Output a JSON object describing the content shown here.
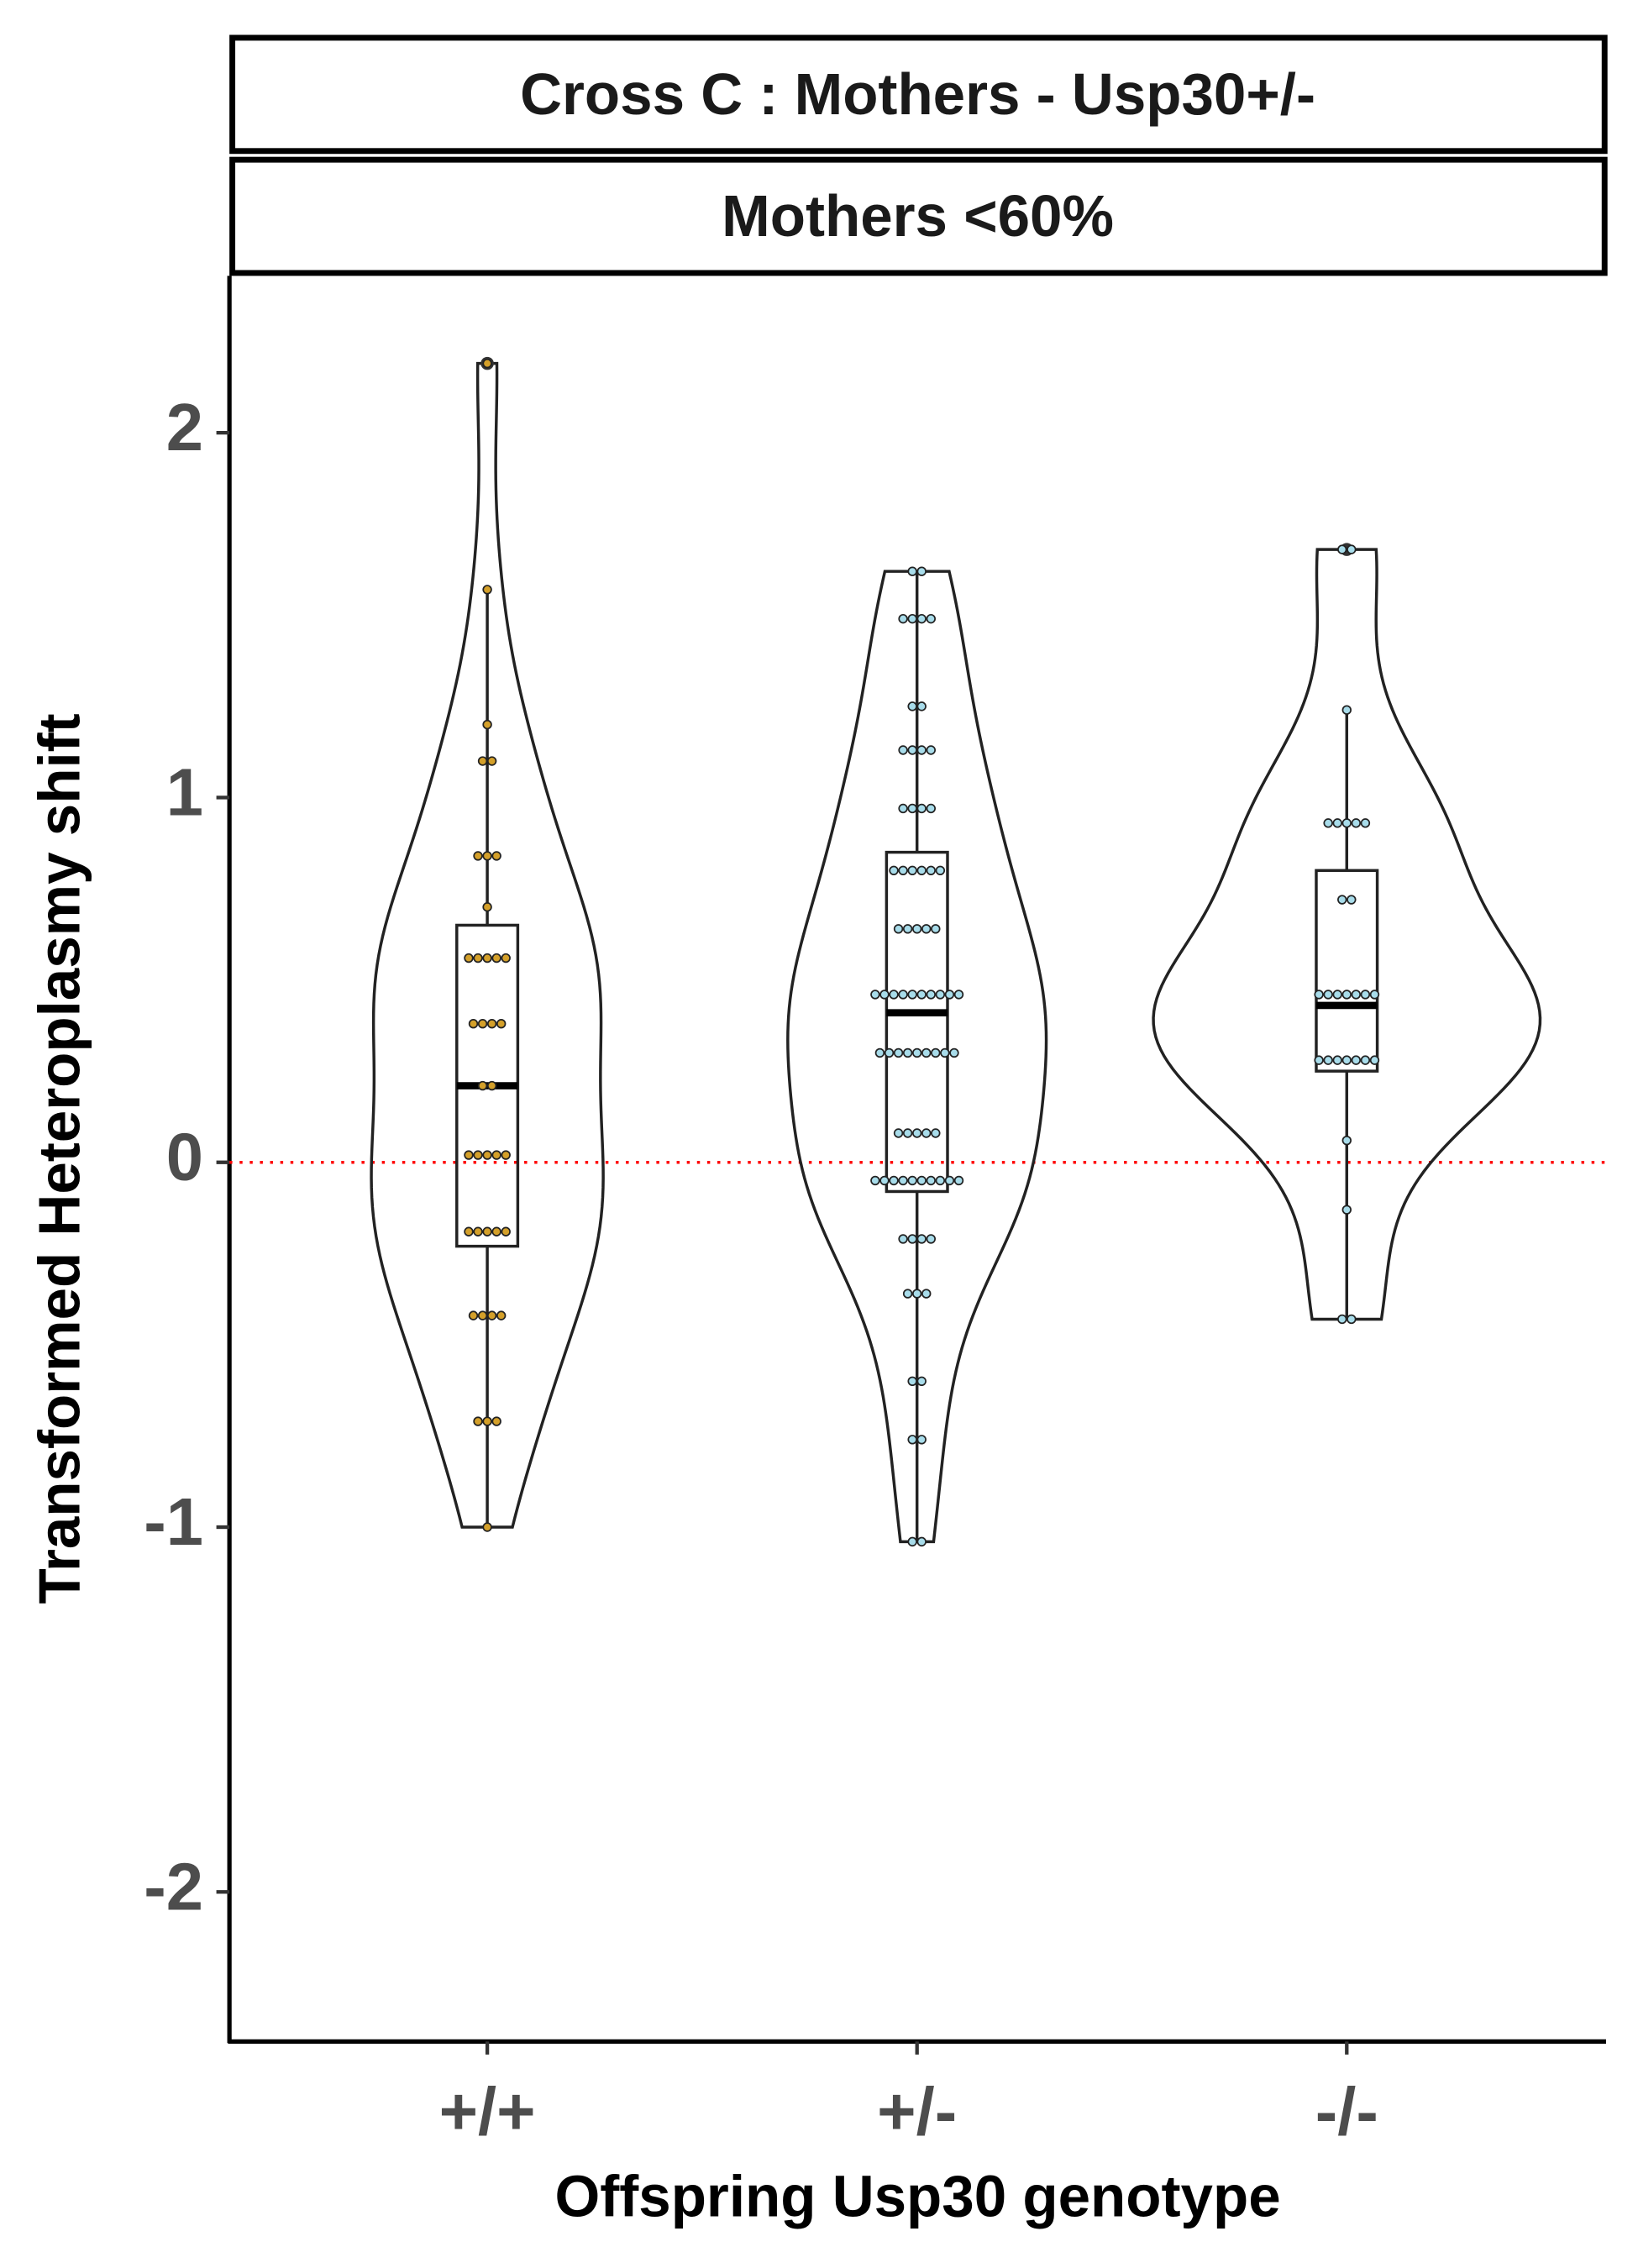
{
  "chart_data": {
    "type": "violin",
    "strip_titles": [
      "Cross C : Mothers - Usp30+/-",
      "Mothers <60%"
    ],
    "x_label": "Offspring Usp30 genotype",
    "y_label": "Transformed Heteroplasmy shift",
    "categories": [
      "+/+",
      "+/-",
      "-/-"
    ],
    "ylim": [
      -2.41,
      2.43
    ],
    "yticks": [
      -2,
      -1,
      0,
      1,
      2
    ],
    "reference_line": {
      "value": 0,
      "color": "#ff0000"
    },
    "groups": [
      {
        "color": "#d4a02a",
        "values": [
          2.19,
          1.57,
          1.2,
          1.1,
          1.1,
          0.84,
          0.84,
          0.84,
          0.7,
          0.56,
          0.56,
          0.56,
          0.56,
          0.56,
          0.38,
          0.38,
          0.38,
          0.38,
          0.21,
          0.21,
          0.02,
          0.02,
          0.02,
          0.02,
          0.02,
          -0.19,
          -0.19,
          -0.19,
          -0.19,
          -0.19,
          -0.42,
          -0.42,
          -0.42,
          -0.42,
          -0.71,
          -0.71,
          -0.71,
          -1.0
        ],
        "box": {
          "whisker_low": -1.0,
          "q1": -0.23,
          "median": 0.21,
          "q3": 0.65,
          "whisker_high": 1.57
        },
        "outliers": [
          2.19
        ]
      },
      {
        "color": "#a8dcea",
        "values": [
          1.62,
          1.62,
          1.49,
          1.49,
          1.49,
          1.49,
          1.25,
          1.25,
          1.13,
          1.13,
          1.13,
          1.13,
          0.97,
          0.97,
          0.97,
          0.97,
          0.8,
          0.8,
          0.8,
          0.8,
          0.8,
          0.8,
          0.64,
          0.64,
          0.64,
          0.64,
          0.64,
          0.46,
          0.46,
          0.46,
          0.46,
          0.46,
          0.46,
          0.46,
          0.46,
          0.46,
          0.46,
          0.3,
          0.3,
          0.3,
          0.3,
          0.3,
          0.3,
          0.3,
          0.3,
          0.3,
          0.08,
          0.08,
          0.08,
          0.08,
          0.08,
          -0.05,
          -0.05,
          -0.05,
          -0.05,
          -0.05,
          -0.05,
          -0.05,
          -0.05,
          -0.05,
          -0.05,
          -0.21,
          -0.21,
          -0.21,
          -0.21,
          -0.36,
          -0.36,
          -0.36,
          -0.6,
          -0.6,
          -0.76,
          -0.76,
          -1.04,
          -1.04
        ],
        "box": {
          "whisker_low": -1.04,
          "q1": -0.08,
          "median": 0.41,
          "q3": 0.85,
          "whisker_high": 1.62
        },
        "outliers": []
      },
      {
        "color": "#a8dcea",
        "values": [
          1.68,
          1.68,
          1.24,
          0.93,
          0.93,
          0.93,
          0.93,
          0.93,
          0.72,
          0.72,
          0.46,
          0.46,
          0.46,
          0.46,
          0.46,
          0.46,
          0.46,
          0.28,
          0.28,
          0.28,
          0.28,
          0.28,
          0.28,
          0.28,
          0.06,
          -0.13,
          -0.43,
          -0.43
        ],
        "box": {
          "whisker_low": -0.43,
          "q1": 0.25,
          "median": 0.43,
          "q3": 0.8,
          "whisker_high": 1.24
        },
        "outliers": [
          1.68
        ]
      }
    ]
  }
}
